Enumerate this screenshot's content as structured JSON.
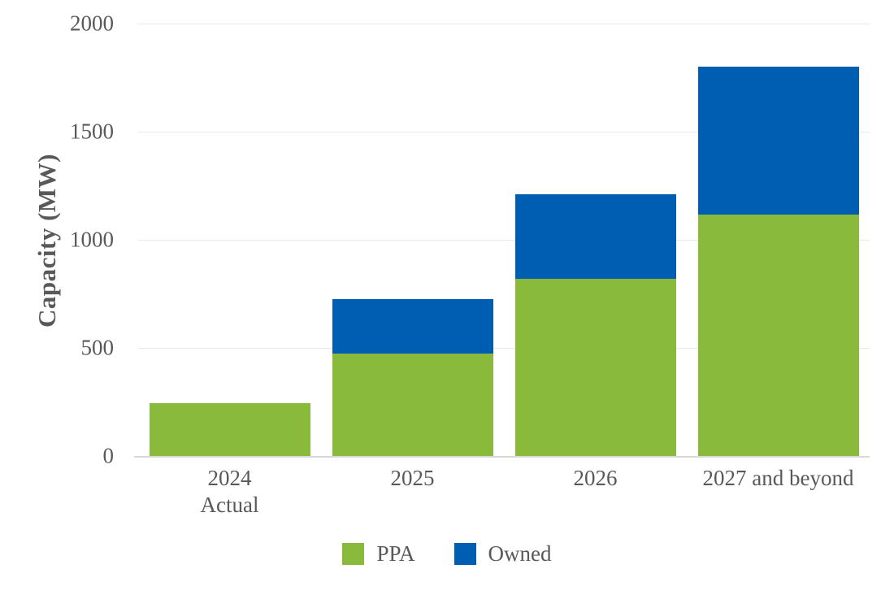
{
  "chart_data": {
    "type": "bar",
    "stacked": true,
    "title": "",
    "xlabel": "",
    "ylabel": "Capacity (MW)",
    "categories": [
      "2024\nActual",
      "2025",
      "2026",
      "2027 and beyond"
    ],
    "series": [
      {
        "name": "PPA",
        "color": "#8aba3c",
        "values": [
          245,
          475,
          820,
          1115
        ]
      },
      {
        "name": "Owned",
        "color": "#005eb2",
        "values": [
          0,
          250,
          390,
          685
        ]
      }
    ],
    "totals": [
      245,
      725,
      1210,
      1800
    ],
    "ylim": [
      0,
      2000
    ],
    "yticks": [
      0,
      500,
      1000,
      1500,
      2000
    ],
    "grid": true,
    "legend_position": "bottom",
    "colors": {
      "background": "#ffffff",
      "text": "#595959",
      "gridline": "#e9e9e9",
      "axis_line": "#d9d9d9"
    }
  }
}
